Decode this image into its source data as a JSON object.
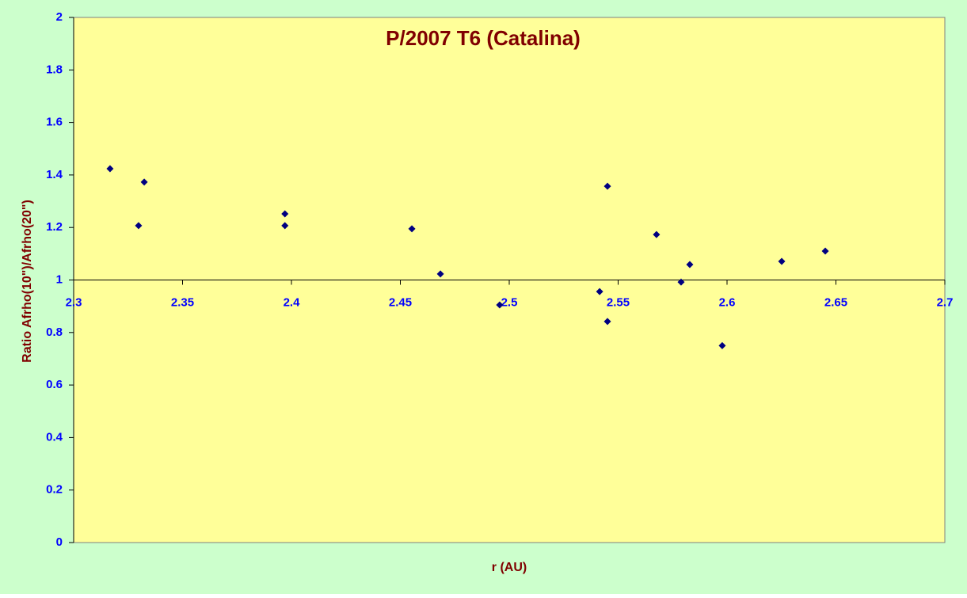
{
  "chart_data": {
    "type": "scatter",
    "title": "P/2007 T6 (Catalina)",
    "x_label": "r (AU)",
    "y_label": "Ratio Afrho(10\")/Afrho(20\")",
    "x": [
      2.3167,
      2.3298,
      2.3324,
      2.397,
      2.397,
      2.4553,
      2.4684,
      2.4956,
      2.5415,
      2.5451,
      2.5451,
      2.5676,
      2.5789,
      2.5829,
      2.5978,
      2.6251,
      2.6451
    ],
    "values": [
      1.424,
      1.207,
      1.373,
      1.252,
      1.207,
      1.195,
      1.023,
      0.905,
      0.956,
      1.357,
      0.842,
      1.173,
      0.992,
      1.059,
      0.75,
      1.071,
      1.11
    ],
    "color": "#000080",
    "xlim": [
      2.3,
      2.7
    ],
    "xticks": [
      2.3,
      2.35,
      2.4,
      2.45,
      2.5,
      2.55,
      2.6,
      2.65,
      2.7
    ],
    "ylim": [
      0,
      2
    ],
    "yticks": [
      0,
      0.2,
      0.4,
      0.6,
      0.8,
      1,
      1.2,
      1.4,
      1.6,
      1.8,
      2
    ],
    "x_axis_crosses": 1
  }
}
